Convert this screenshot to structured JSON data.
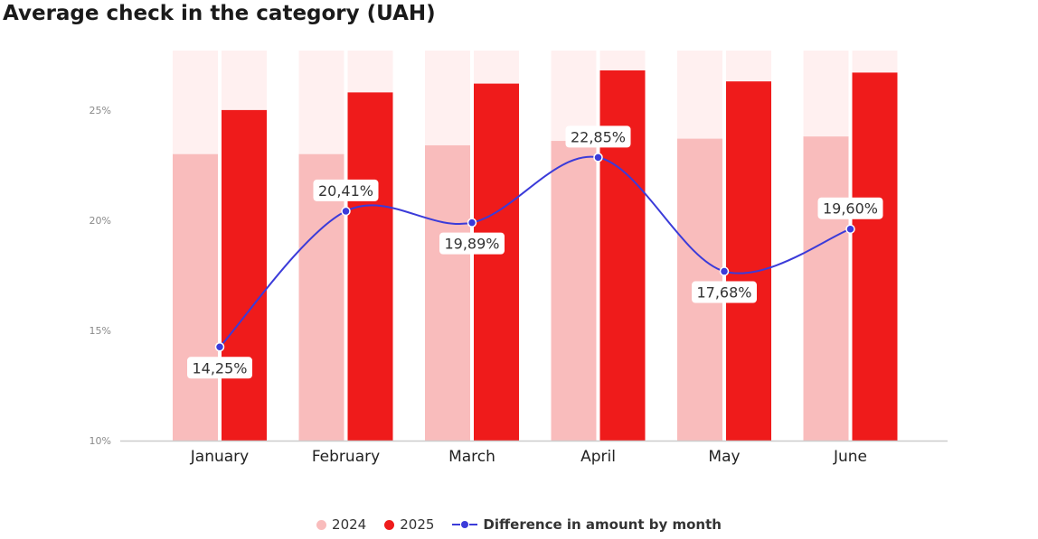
{
  "chart_data": {
    "type": "bar",
    "title": "Average check in the category (UAH)",
    "categories": [
      "January",
      "February",
      "March",
      "April",
      "May",
      "June"
    ],
    "y_ticks": [
      "10%",
      "15%",
      "20%",
      "25%"
    ],
    "ylim": [
      10,
      27.7
    ],
    "series": [
      {
        "name": "2024",
        "color": "#f9bcbc",
        "values": [
          23.0,
          23.0,
          23.4,
          23.6,
          23.7,
          23.8
        ]
      },
      {
        "name": "2025",
        "color": "#ef1b1b",
        "values": [
          25.0,
          25.8,
          26.2,
          26.8,
          26.3,
          26.7
        ]
      }
    ],
    "line_series": {
      "name": "Difference in amount by month",
      "color": "#3b3bd9",
      "values": [
        14.25,
        20.41,
        19.89,
        22.85,
        17.68,
        19.6
      ],
      "labels": [
        "14,25%",
        "20,41%",
        "19,89%",
        "22,85%",
        "17,68%",
        "19,60%"
      ]
    },
    "background_bar_color": "#fff0f0",
    "grid": false,
    "legend_position": "bottom"
  }
}
